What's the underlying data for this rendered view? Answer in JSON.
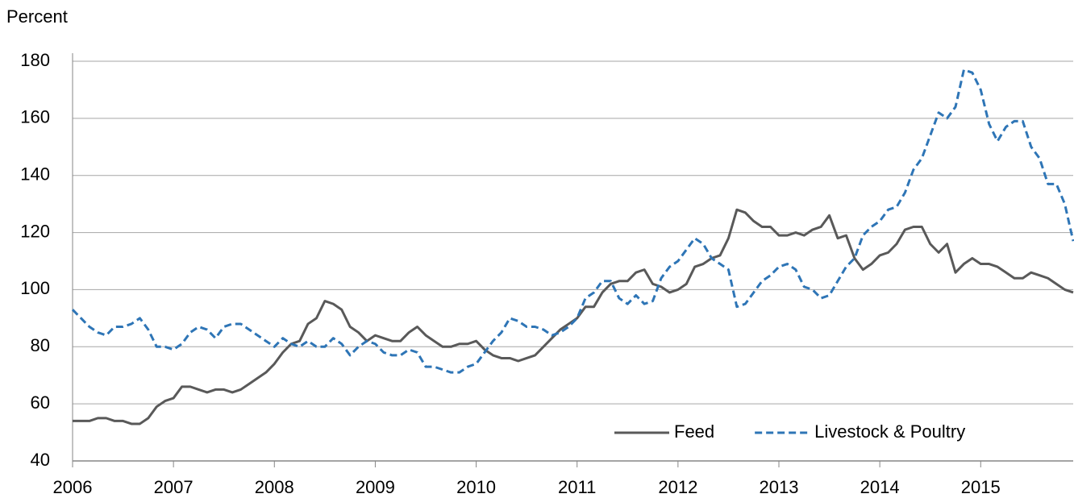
{
  "chart_data": {
    "type": "line",
    "y_label": "Percent",
    "categories": [
      "2006",
      null,
      null,
      null,
      null,
      null,
      null,
      null,
      null,
      null,
      null,
      null,
      "2007",
      null,
      null,
      null,
      null,
      null,
      null,
      null,
      null,
      null,
      null,
      null,
      "2008",
      null,
      null,
      null,
      null,
      null,
      null,
      null,
      null,
      null,
      null,
      null,
      "2009",
      null,
      null,
      null,
      null,
      null,
      null,
      null,
      null,
      null,
      null,
      null,
      "2010",
      null,
      null,
      null,
      null,
      null,
      null,
      null,
      null,
      null,
      null,
      null,
      "2011",
      null,
      null,
      null,
      null,
      null,
      null,
      null,
      null,
      null,
      null,
      null,
      "2012",
      null,
      null,
      null,
      null,
      null,
      null,
      null,
      null,
      null,
      null,
      null,
      "2013",
      null,
      null,
      null,
      null,
      null,
      null,
      null,
      null,
      null,
      null,
      null,
      "2014",
      null,
      null,
      null,
      null,
      null,
      null,
      null,
      null,
      null,
      null,
      null,
      "2015",
      null,
      null,
      null,
      null,
      null,
      null,
      null,
      null,
      null,
      null,
      null
    ],
    "series": [
      {
        "name": "Feed",
        "color": "#595959",
        "dash": false,
        "values": [
          54,
          54,
          54,
          55,
          55,
          54,
          54,
          53,
          53,
          55,
          59,
          61,
          62,
          66,
          66,
          65,
          64,
          65,
          65,
          64,
          65,
          67,
          69,
          71,
          74,
          78,
          81,
          82,
          88,
          90,
          96,
          95,
          93,
          87,
          85,
          82,
          84,
          83,
          82,
          82,
          85,
          87,
          84,
          82,
          80,
          80,
          81,
          81,
          82,
          79,
          77,
          76,
          76,
          75,
          76,
          77,
          80,
          83,
          86,
          88,
          90,
          94,
          94,
          99,
          102,
          103,
          103,
          106,
          107,
          102,
          101,
          99,
          100,
          102,
          108,
          109,
          111,
          112,
          118,
          128,
          127,
          124,
          122,
          122,
          119,
          119,
          120,
          119,
          121,
          122,
          126,
          118,
          119,
          111,
          107,
          109,
          112,
          113,
          116,
          121,
          122,
          122,
          116,
          113,
          116,
          106,
          109,
          111,
          109,
          109,
          108,
          106,
          104,
          104,
          106,
          105,
          104,
          102,
          100,
          99
        ]
      },
      {
        "name": "Livestock & Poultry",
        "color": "#2e75b6",
        "dash": true,
        "values": [
          93,
          90,
          87,
          85,
          84,
          87,
          87,
          88,
          90,
          86,
          80,
          80,
          79,
          81,
          85,
          87,
          86,
          83,
          87,
          88,
          88,
          86,
          84,
          82,
          80,
          83,
          81,
          80,
          82,
          80,
          80,
          83,
          81,
          77,
          80,
          82,
          81,
          78,
          77,
          77,
          79,
          78,
          73,
          73,
          72,
          71,
          71,
          73,
          74,
          78,
          82,
          85,
          90,
          89,
          87,
          87,
          86,
          84,
          85,
          87,
          90,
          97,
          99,
          103,
          103,
          97,
          95,
          98,
          95,
          96,
          104,
          108,
          110,
          114,
          118,
          116,
          111,
          109,
          107,
          94,
          95,
          99,
          103,
          105,
          108,
          109,
          107,
          101,
          100,
          97,
          98,
          103,
          108,
          111,
          119,
          122,
          124,
          128,
          129,
          134,
          142,
          146,
          154,
          162,
          160,
          164,
          177,
          176,
          170,
          158,
          152,
          157,
          159,
          159,
          150,
          146,
          137,
          137,
          130,
          117
        ]
      }
    ],
    "ylim": [
      40,
      180
    ],
    "yticks": [
      40,
      60,
      80,
      100,
      120,
      140,
      160,
      180
    ],
    "grid": true,
    "legend": "lower right"
  }
}
